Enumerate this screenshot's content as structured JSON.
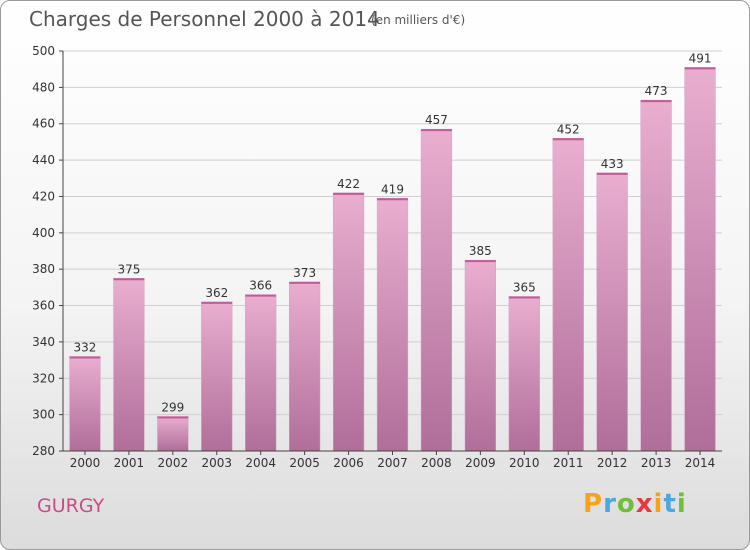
{
  "title": "Charges de Personnel 2000 à 2014",
  "unit_note": "(en milliers d'€)",
  "commune": "GURGY",
  "logo": {
    "letters": [
      "P",
      "r",
      "o",
      "x",
      "i",
      "t",
      "i"
    ],
    "colors": [
      "#f7a21b",
      "#4aa8e0",
      "#6fbf3b",
      "#e8383d",
      "#f7a21b",
      "#4aa8e0",
      "#6fbf3b"
    ]
  },
  "colors": {
    "bar_top": "#e9aed0",
    "bar_bottom": "#b06e9a",
    "title": "#555555",
    "commune": "#cc4a8a"
  },
  "chart_data": {
    "type": "bar",
    "categories": [
      "2000",
      "2001",
      "2002",
      "2003",
      "2004",
      "2005",
      "2006",
      "2007",
      "2008",
      "2009",
      "2010",
      "2011",
      "2012",
      "2013",
      "2014"
    ],
    "values": [
      332,
      375,
      299,
      362,
      366,
      373,
      422,
      419,
      457,
      385,
      365,
      452,
      433,
      473,
      491
    ],
    "data_labels": [
      "332",
      "375",
      "299",
      "362",
      "366",
      "373",
      "422",
      "419",
      "457",
      "385",
      "365",
      "452",
      "433",
      "473",
      "491"
    ],
    "yticks": [
      280,
      300,
      320,
      340,
      360,
      380,
      400,
      420,
      440,
      460,
      480,
      500
    ],
    "ylim": [
      280,
      500
    ],
    "grid": true,
    "legend": "none"
  }
}
